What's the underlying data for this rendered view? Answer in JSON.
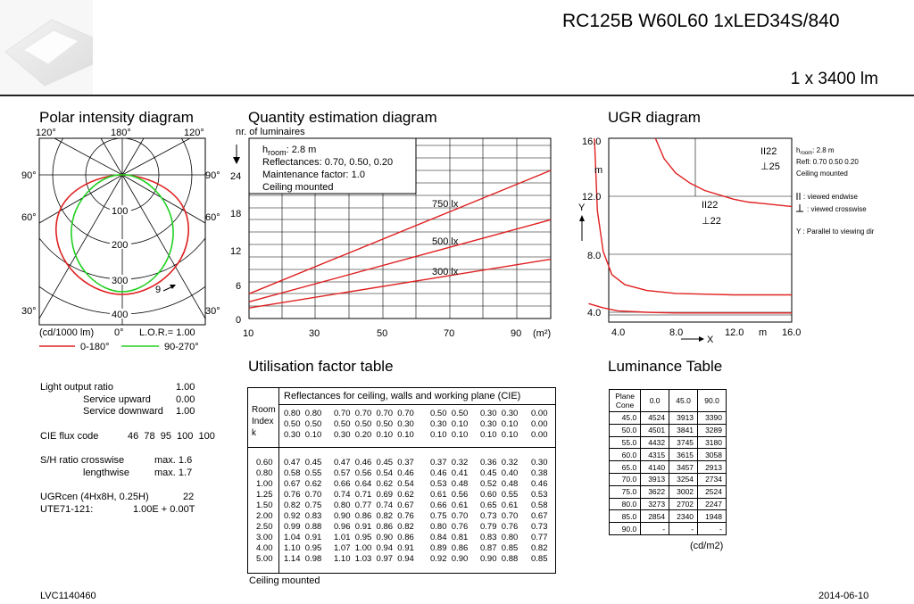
{
  "header": {
    "title": "RC125B W60L60 1xLED34S/840",
    "lumen": "1 x 3400 lm"
  },
  "polar": {
    "title": "Polar intensity diagram",
    "angles_top": [
      "120°",
      "180°",
      "120°"
    ],
    "angles_left": [
      "90°",
      "60°",
      "30°"
    ],
    "angles_right": [
      "90°",
      "60°",
      "30°"
    ],
    "ring_labels": [
      "100",
      "200",
      "300",
      "400"
    ],
    "bottom_angle": "0°",
    "unit_label": "(cd/1000 lm)",
    "lor_label": "L.O.R.= 1.00",
    "arrow_label": "9",
    "legend": [
      {
        "name": "0-180°",
        "color": "#e02020"
      },
      {
        "name": "90-270°",
        "color": "#20d020"
      }
    ]
  },
  "quantity": {
    "title": "Quantity estimation diagram",
    "ylabel": "nr. of luminaires",
    "xunit": "(m²)",
    "xticks": [
      "10",
      "30",
      "50",
      "70",
      "90"
    ],
    "yticks": [
      "0",
      "6",
      "12",
      "18",
      "24"
    ],
    "info": [
      "2.8 m",
      "Reflectances: 0.70, 0.50, 0.20",
      "Maintenance factor: 1.0",
      "Ceiling mounted"
    ],
    "info_hroom_label": "h",
    "info_hroom_sub": "room",
    "line_color": "#e02020"
  },
  "chart_data": [
    {
      "type": "line",
      "title": "Quantity estimation diagram",
      "xlabel": "(m²)",
      "ylabel": "nr. of luminaires",
      "xlim": [
        10,
        100
      ],
      "ylim": [
        0,
        24
      ],
      "x": [
        10,
        100
      ],
      "series": [
        {
          "name": "750 lx",
          "values": [
            4,
            24
          ]
        },
        {
          "name": "500 lx",
          "values": [
            2.7,
            16
          ]
        },
        {
          "name": "300 lx",
          "values": [
            1.7,
            9.6
          ]
        }
      ]
    },
    {
      "type": "line",
      "title": "UGR diagram",
      "xlabel": "X",
      "ylabel": "Y",
      "xlim": [
        2.0,
        16.0
      ],
      "ylim": [
        3.6,
        16.0
      ],
      "series": [
        {
          "x": [
            2.4,
            2.6,
            3.0,
            3.6,
            4.5,
            6,
            8,
            10,
            12,
            14,
            16
          ],
          "values": [
            16,
            11,
            8.2,
            6.6,
            5.9,
            5.5,
            5.3,
            5.25,
            5.2,
            5.2,
            5.2
          ]
        },
        {
          "x": [
            6.6,
            7.2,
            8,
            9,
            10,
            11,
            12,
            13,
            14,
            15,
            16
          ],
          "values": [
            16,
            14.6,
            13.6,
            12.9,
            12.4,
            12.1,
            11.8,
            11.6,
            11.5,
            11.4,
            11.3
          ]
        },
        {
          "x": [
            2.0,
            3,
            4,
            6,
            8,
            10,
            12,
            14,
            16
          ],
          "values": [
            4.6,
            4.3,
            4.1,
            4.0,
            3.95,
            3.95,
            3.95,
            3.95,
            3.95
          ]
        }
      ]
    }
  ],
  "ugr": {
    "title": "UGR diagram",
    "yticks": [
      "16.0",
      "12.0",
      "8.0",
      "4.0"
    ],
    "xticks": [
      "4.0",
      "8.0",
      "12.0",
      "16.0"
    ],
    "m_label": "m",
    "y_label": "Y",
    "x_label": "X",
    "labels_top": [
      "II22",
      "⊥25"
    ],
    "labels_mid": [
      "II22",
      "⊥22"
    ],
    "side_hroom_label": "h",
    "side_hroom_sub": "room",
    "side_hroom_value": ": 2.8 m",
    "side_info": [
      "Refl: 0.70 0.50 0.20",
      "Ceiling mounted"
    ],
    "side_endwise": ": viewed endwise",
    "side_crosswise": ": viewed crosswise",
    "side_parallel": "Y  : Parallel to viewing dir"
  },
  "left_info": {
    "lor_label": "Light output ratio",
    "lor_value": "1.00",
    "up_label": "Service upward",
    "up_value": "0.00",
    "down_label": "Service downward",
    "down_value": "1.00",
    "cie_label": "CIE flux code",
    "cie_value": "46  78  95  100  100",
    "sh_label": "S/H ratio crosswise",
    "sh_cross": "max. 1.6",
    "sh_length_label": "lengthwise",
    "sh_length": "max. 1.7",
    "ugr_label": "UGRcen (4Hx8H, 0.25H)",
    "ugr_value": "22",
    "ute_label": "UTE71-121:",
    "ute_value": "1.00E + 0.00T"
  },
  "utilisation": {
    "title": "Utilisation factor table",
    "header": "Reflectances for ceiling, walls and working plane (CIE)",
    "room_index_label": "Room\nIndex\nk",
    "refl_groups": [
      "0.80  0.80\n0.50  0.50\n0.30  0.10",
      "0.70  0.70  0.70  0.70\n0.50  0.50  0.50  0.30\n0.30  0.20  0.10  0.10",
      "0.50  0.50\n0.30  0.10\n0.10  0.10",
      "0.30  0.30\n0.30  0.10\n0.10  0.10",
      "0.00\n0.00\n0.00"
    ],
    "k_values": "0.60\n0.80\n1.00\n1.25\n1.50\n2.00\n2.50\n3.00\n4.00\n5.00",
    "col_groups": [
      "0.47  0.45\n0.58  0.55\n0.67  0.62\n0.76  0.70\n0.82  0.75\n0.92  0.83\n0.99  0.88\n1.04  0.91\n1.10  0.95\n1.14  0.98",
      "0.47  0.46  0.45  0.37\n0.57  0.56  0.54  0.46\n0.66  0.64  0.62  0.54\n0.74  0.71  0.69  0.62\n0.80  0.77  0.74  0.67\n0.90  0.86  0.82  0.76\n0.96  0.91  0.86  0.82\n1.01  0.95  0.90  0.86\n1.07  1.00  0.94  0.91\n1.10  1.03  0.97  0.94",
      "0.37  0.32\n0.46  0.41\n0.53  0.48\n0.61  0.56\n0.66  0.61\n0.75  0.70\n0.80  0.76\n0.84  0.81\n0.89  0.86\n0.92  0.90",
      "0.36  0.32\n0.45  0.40\n0.52  0.48\n0.60  0.55\n0.65  0.61\n0.73  0.70\n0.79  0.76\n0.83  0.80\n0.87  0.85\n0.90  0.88",
      "0.30\n0.38\n0.46\n0.53\n0.58\n0.67\n0.73\n0.77\n0.82\n0.85"
    ],
    "footnote": "Ceiling mounted"
  },
  "luminance": {
    "title": "Luminance Table",
    "header": [
      "Plane\nCone",
      "0.0",
      "45.0",
      "90.0"
    ],
    "rows": [
      [
        "45.0",
        "4524",
        "3913",
        "3390"
      ],
      [
        "50.0",
        "4501",
        "3841",
        "3289"
      ],
      [
        "55.0",
        "4432",
        "3745",
        "3180"
      ],
      [
        "60.0",
        "4315",
        "3615",
        "3058"
      ],
      [
        "65.0",
        "4140",
        "3457",
        "2913"
      ],
      [
        "70.0",
        "3913",
        "3254",
        "2734"
      ],
      [
        "75.0",
        "3622",
        "3002",
        "2524"
      ],
      [
        "80.0",
        "3273",
        "2702",
        "2247"
      ],
      [
        "85.0",
        "2854",
        "2340",
        "1948"
      ],
      [
        "90.0",
        "-",
        "-",
        "-"
      ]
    ],
    "unit": "(cd/m2)"
  },
  "footer": {
    "left": "LVC1140460",
    "right": "2014-06-10"
  }
}
